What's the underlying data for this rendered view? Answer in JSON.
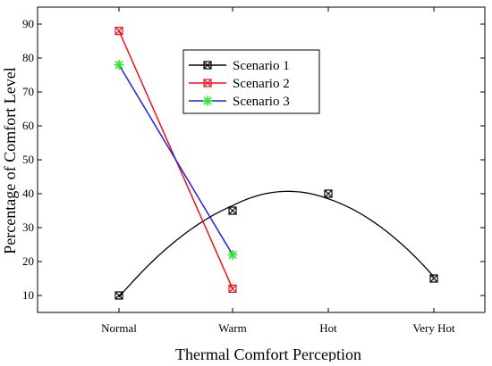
{
  "chart_data": {
    "type": "line",
    "categories": [
      "Normal",
      "Warm",
      "Hot",
      "Very Hot"
    ],
    "xlabel": "Thermal Comfort Perception",
    "ylabel": "Percentage of Comfort Level",
    "ylim": [
      5,
      95
    ],
    "yticks": [
      10,
      20,
      30,
      40,
      50,
      60,
      70,
      80,
      90
    ],
    "grid": false,
    "legend_position": "top-center",
    "series": [
      {
        "name": "Scenario 1",
        "color": "#000000",
        "marker": "square-x",
        "x": [
          "Normal",
          "Warm",
          "Hot",
          "Very Hot"
        ],
        "values": [
          10,
          35,
          40,
          15
        ],
        "line": "smooth-fit"
      },
      {
        "name": "Scenario 2",
        "color": "#e8141c",
        "marker": "square-x",
        "x": [
          "Normal",
          "Warm"
        ],
        "values": [
          88,
          12
        ],
        "line": "straight"
      },
      {
        "name": "Scenario 3",
        "color": "#1a23e0",
        "marker": "asterisk",
        "marker_color": "#2ee82e",
        "x": [
          "Normal",
          "Warm"
        ],
        "values": [
          78,
          22
        ],
        "line": "straight"
      }
    ]
  }
}
